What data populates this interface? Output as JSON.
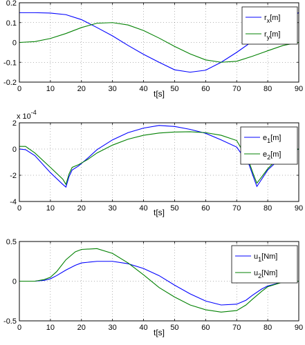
{
  "chart_data": [
    {
      "type": "line",
      "xlabel": "t[s]",
      "ylabel": "",
      "xlim": [
        0,
        90
      ],
      "ylim": [
        -0.2,
        0.2
      ],
      "xticks": [
        "0",
        "10",
        "20",
        "30",
        "40",
        "50",
        "60",
        "70",
        "80",
        "90"
      ],
      "yticks": [
        "-0.2",
        "-0.1",
        "0",
        "0.1",
        "0.2"
      ],
      "grid": true,
      "legend_position": "top-right",
      "series": [
        {
          "name": "r_x[m]",
          "name_main": "r",
          "name_sub": "x",
          "name_unit": "[m]",
          "color": "#0000ff",
          "x": [
            0,
            5,
            10,
            15,
            20,
            25,
            30,
            35,
            40,
            45,
            50,
            55,
            60,
            65,
            70,
            75,
            80,
            85,
            90
          ],
          "y": [
            0.15,
            0.15,
            0.148,
            0.14,
            0.115,
            0.075,
            0.033,
            -0.015,
            -0.06,
            -0.1,
            -0.138,
            -0.15,
            -0.14,
            -0.1,
            -0.05,
            0.005,
            0.065,
            0.115,
            0.15
          ]
        },
        {
          "name": "r_y[m]",
          "name_main": "r",
          "name_sub": "y",
          "name_unit": "[m]",
          "color": "#008000",
          "x": [
            0,
            5,
            10,
            15,
            20,
            25,
            30,
            35,
            40,
            45,
            50,
            55,
            60,
            65,
            70,
            75,
            80,
            85,
            90
          ],
          "y": [
            0,
            0.004,
            0.02,
            0.045,
            0.075,
            0.097,
            0.1,
            0.088,
            0.06,
            0.022,
            -0.02,
            -0.058,
            -0.088,
            -0.1,
            -0.095,
            -0.07,
            -0.042,
            -0.015,
            0
          ]
        }
      ]
    },
    {
      "type": "line",
      "xlabel": "t[s]",
      "ylabel": "",
      "multiplier_base": "x 10",
      "multiplier_exp": "-4",
      "xlim": [
        0,
        90
      ],
      "ylim": [
        -4,
        2
      ],
      "xticks": [
        "0",
        "10",
        "20",
        "30",
        "40",
        "50",
        "60",
        "70",
        "80",
        "90"
      ],
      "yticks": [
        "-4",
        "-2",
        "0",
        "2"
      ],
      "grid": true,
      "legend_position": "top-right",
      "series": [
        {
          "name": "e_1[m]",
          "name_main": "e",
          "name_sub": "1",
          "name_unit": "[m]",
          "color": "#0000ff",
          "x": [
            0,
            2,
            5,
            10,
            14,
            15,
            16,
            17,
            19,
            22,
            25,
            30,
            35,
            40,
            45,
            50,
            55,
            60,
            65,
            70,
            74,
            75.5,
            76.5,
            77.5,
            80,
            85,
            90
          ],
          "y": [
            0,
            -0.05,
            -0.5,
            -1.8,
            -2.7,
            -2.9,
            -2.1,
            -1.6,
            -1.3,
            -0.7,
            -0.05,
            0.7,
            1.25,
            1.6,
            1.8,
            1.72,
            1.5,
            1.2,
            0.7,
            0.15,
            -1.2,
            -2.2,
            -2.85,
            -2.5,
            -1.6,
            -0.5,
            0
          ]
        },
        {
          "name": "e_2[m]",
          "name_main": "e",
          "name_sub": "2",
          "name_unit": "[m]",
          "color": "#008000",
          "x": [
            0,
            2,
            5,
            10,
            14,
            15,
            16,
            17,
            19,
            22,
            25,
            30,
            35,
            40,
            45,
            50,
            55,
            60,
            65,
            70,
            74,
            75.5,
            76.5,
            77.5,
            80,
            85,
            90
          ],
          "y": [
            0.2,
            0.2,
            -0.3,
            -1.4,
            -2.3,
            -2.7,
            -1.9,
            -1.4,
            -1.2,
            -0.8,
            -0.3,
            0.3,
            0.75,
            1.05,
            1.22,
            1.3,
            1.32,
            1.25,
            1.05,
            0.65,
            -1.0,
            -2.0,
            -2.6,
            -2.3,
            -1.5,
            -0.3,
            0
          ]
        }
      ]
    },
    {
      "type": "line",
      "xlabel": "t[s]",
      "ylabel": "",
      "xlim": [
        0,
        90
      ],
      "ylim": [
        -0.5,
        0.5
      ],
      "xticks": [
        "0",
        "10",
        "20",
        "30",
        "40",
        "50",
        "60",
        "70",
        "80",
        "90"
      ],
      "yticks": [
        "-0.5",
        "0",
        "0.5"
      ],
      "grid": true,
      "legend_position": "top-right",
      "series": [
        {
          "name": "u_1[Nm]",
          "name_main": "u",
          "name_sub": "1",
          "name_unit": "[Nm]",
          "color": "#0000ff",
          "x": [
            0,
            5,
            8,
            10,
            12,
            15,
            18,
            20,
            25,
            30,
            35,
            40,
            45,
            50,
            55,
            60,
            65,
            70,
            73,
            75,
            78,
            80,
            85,
            90
          ],
          "y": [
            0,
            0,
            0.01,
            0.03,
            0.07,
            0.14,
            0.2,
            0.23,
            0.25,
            0.25,
            0.22,
            0.16,
            0.07,
            -0.05,
            -0.16,
            -0.25,
            -0.3,
            -0.29,
            -0.24,
            -0.18,
            -0.1,
            -0.06,
            -0.01,
            0
          ]
        },
        {
          "name": "u_2[Nm]",
          "name_main": "u",
          "name_sub": "2",
          "name_unit": "[Nm]",
          "color": "#008000",
          "x": [
            0,
            5,
            8,
            10,
            12,
            15,
            18,
            20,
            25,
            30,
            35,
            40,
            45,
            50,
            55,
            60,
            65,
            70,
            73,
            75,
            78,
            80,
            85,
            90
          ],
          "y": [
            0,
            0,
            0.02,
            0.05,
            0.12,
            0.27,
            0.37,
            0.4,
            0.41,
            0.35,
            0.23,
            0.08,
            -0.08,
            -0.2,
            -0.3,
            -0.36,
            -0.39,
            -0.37,
            -0.3,
            -0.23,
            -0.13,
            -0.07,
            -0.01,
            0
          ]
        }
      ]
    }
  ]
}
